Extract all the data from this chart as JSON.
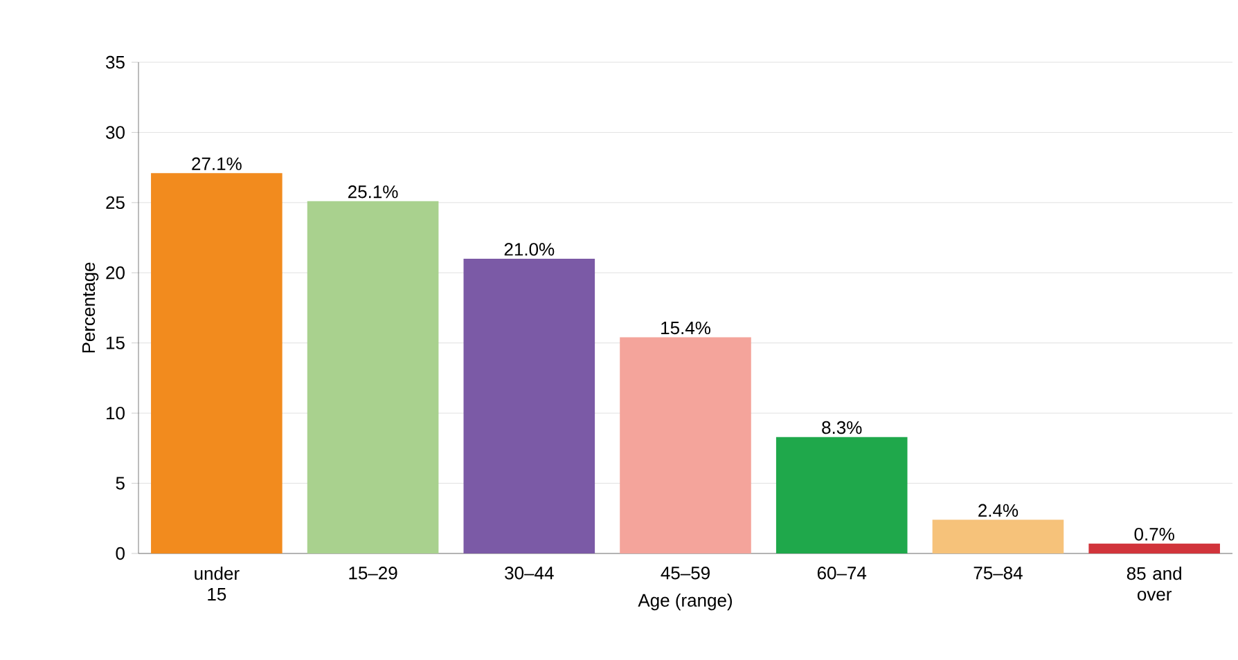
{
  "chart_data": {
    "type": "bar",
    "xlabel": "Age (range)",
    "ylabel": "Percentage",
    "categories": [
      "under 15",
      "15–29",
      "30–44",
      "45–59",
      "60–74",
      "75–84",
      "85 and over"
    ],
    "values": [
      27.1,
      25.1,
      21.0,
      15.4,
      8.3,
      2.4,
      0.7
    ],
    "colors": [
      "#f28b1e",
      "#a9d18e",
      "#7b5aa6",
      "#f4a49b",
      "#1fa84b",
      "#f6c27a",
      "#d1343b"
    ],
    "value_labels": [
      "27.1%",
      "25.1%",
      "21.0%",
      "15.4%",
      "8.3%",
      "2.4%",
      "0.7%"
    ],
    "ylim": [
      0,
      35
    ],
    "yticks": [
      0,
      5,
      10,
      15,
      20,
      25,
      30,
      35
    ],
    "grid": "y"
  }
}
